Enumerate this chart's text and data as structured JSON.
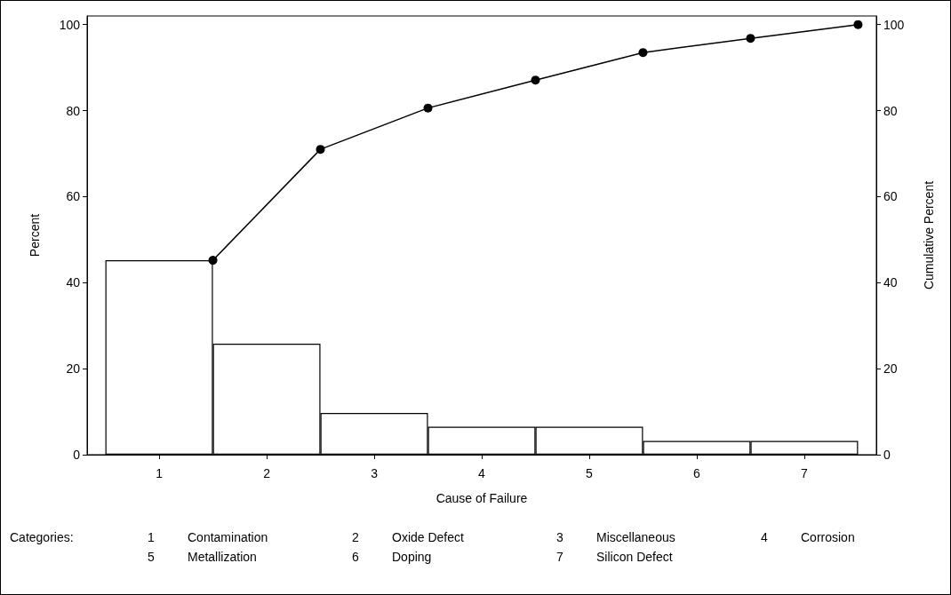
{
  "chart_data": {
    "type": "bar",
    "x": [
      1,
      2,
      3,
      4,
      5,
      6,
      7
    ],
    "xlim": [
      0.33,
      7.67
    ],
    "xticks": [
      1,
      2,
      3,
      4,
      5,
      6,
      7
    ],
    "xlabel": "Cause of Failure",
    "ylabel": "Percent",
    "y2label": "Cumulative Percent",
    "ylim": [
      0,
      102
    ],
    "yticks": [
      0,
      20,
      40,
      60,
      80,
      100
    ],
    "y2lim": [
      0,
      102
    ],
    "y2ticks": [
      0,
      20,
      40,
      60,
      80,
      100
    ],
    "grid": false,
    "series": [
      {
        "color": "#ffffff",
        "values": [
          45.2,
          25.8,
          9.7,
          6.5,
          6.5,
          3.2,
          3.2
        ]
      },
      {
        "type": "line",
        "axis": "y2",
        "color": "#000000",
        "marker": "circle",
        "line_style": "solid",
        "x": [
          1.5,
          2.5,
          3.5,
          4.5,
          5.5,
          6.5,
          7.5
        ],
        "values": [
          45.2,
          71.0,
          80.6,
          87.1,
          93.5,
          96.8,
          100
        ]
      }
    ],
    "annotations": [
      "Categories:",
      "1 Contamination",
      "2 Oxide Defect",
      "3 Miscellaneous",
      "4 Corrosion",
      "5 Metallization",
      "6 Doping",
      "7 Silicon Defect"
    ]
  }
}
